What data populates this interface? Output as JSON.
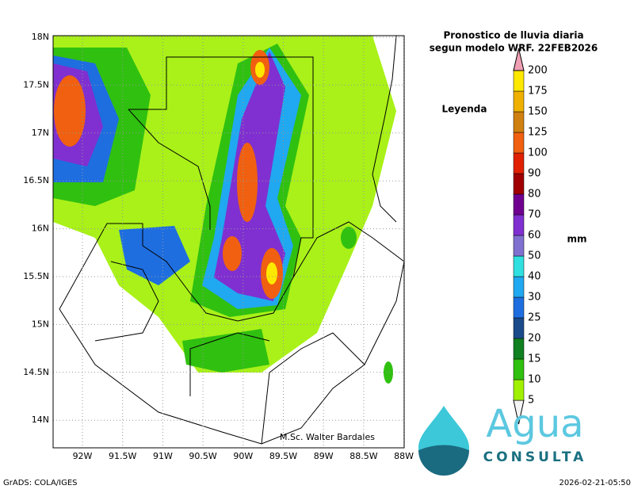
{
  "title": {
    "line1": "Pronostico de lluvia diaria",
    "line2": "segun modelo WRF.  22FEB2026"
  },
  "legend_label": "Leyenda",
  "unit": "mm",
  "colorbar": {
    "levels": [
      5,
      10,
      15,
      20,
      25,
      30,
      40,
      50,
      60,
      70,
      80,
      90,
      100,
      125,
      150,
      175,
      200
    ],
    "colors": [
      "#f4f4f4",
      "#a0f000",
      "#30c010",
      "#108020",
      "#1a4a8a",
      "#1e6ee0",
      "#20a8f0",
      "#30e0e0",
      "#8070d0",
      "#8030d0",
      "#700090",
      "#a00000",
      "#e02000",
      "#f06010",
      "#d08010",
      "#f0b000",
      "#ffe800",
      "#f0a0b4"
    ]
  },
  "lat_labels": [
    "18N",
    "17.5N",
    "17N",
    "16.5N",
    "16N",
    "15.5N",
    "15N",
    "14.5N",
    "14N"
  ],
  "lon_labels": [
    "92W",
    "91.5W",
    "91W",
    "90.5W",
    "90W",
    "89.5W",
    "89W",
    "88.5W",
    "88W"
  ],
  "credit": "M.Sc. Walter Bardales",
  "logo": {
    "name": "Agua",
    "subtitle": "CONSULTA"
  },
  "footer": {
    "left": "GrADS: COLA/IGES",
    "right": "2026-02-21-05:50"
  }
}
